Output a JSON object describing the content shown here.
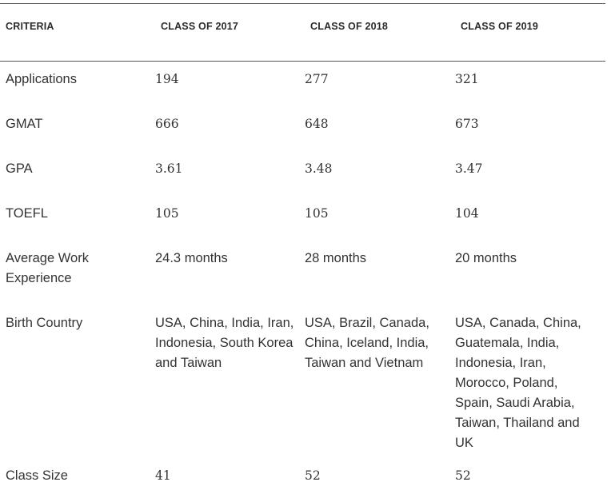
{
  "header": {
    "criteria": "CRITERIA",
    "col1": "CLASS OF 2017",
    "col2": "CLASS OF 2018",
    "col3": "CLASS OF 2019"
  },
  "rows": [
    {
      "criteria": "Applications",
      "c2017": "194",
      "c2018": "277",
      "c2019": "321"
    },
    {
      "criteria": "GMAT",
      "c2017": "666",
      "c2018": "648",
      "c2019": "673"
    },
    {
      "criteria": "GPA",
      "c2017": "3.61",
      "c2018": "3.48",
      "c2019": "3.47"
    },
    {
      "criteria": "TOEFL",
      "c2017": "105",
      "c2018": "105",
      "c2019": "104"
    },
    {
      "criteria": "Average Work Experience",
      "c2017": "24.3 months",
      "c2018": "28 months",
      "c2019": "20 months"
    },
    {
      "criteria": "Birth Country",
      "c2017": "USA, China, India, Iran, Indonesia, South Korea and Taiwan",
      "c2018": "USA, Brazil, Canada, China, Iceland, India, Taiwan and Vietnam",
      "c2019": "USA, Canada, China, Guatemala, India, Indonesia, Iran, Morocco, Poland, Spain, Saudi Arabia, Taiwan, Thailand and UK"
    },
    {
      "criteria": "Class Size",
      "c2017": "41",
      "c2018": "52",
      "c2019": "52"
    }
  ]
}
